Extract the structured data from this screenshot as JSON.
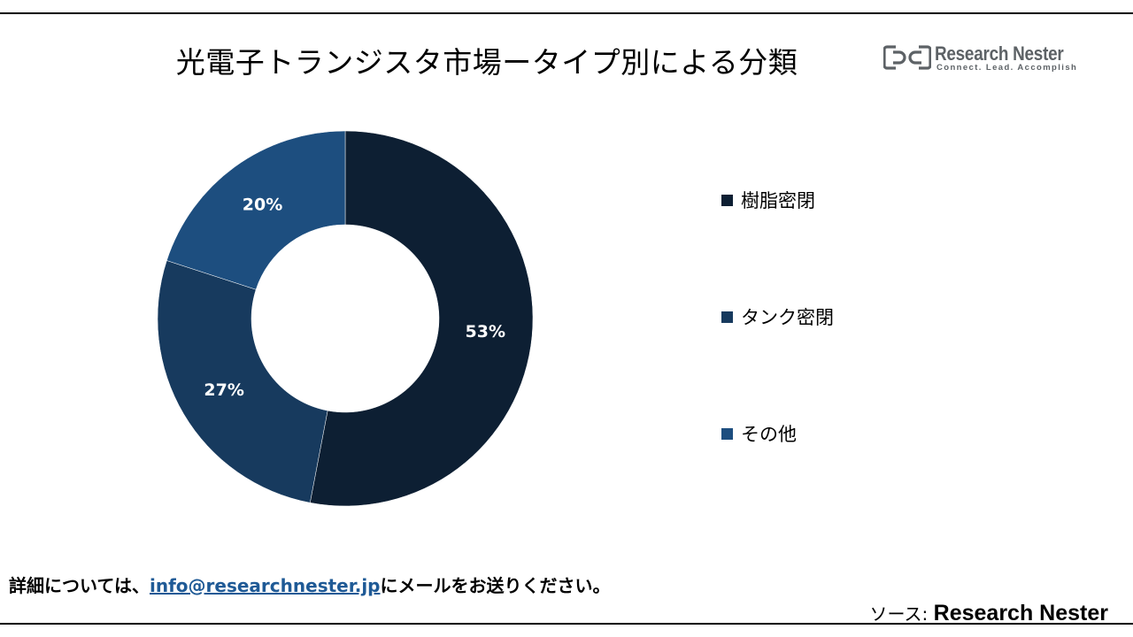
{
  "header": {
    "title": "光電子トランジスタ市場ータイプ別による分類"
  },
  "logo": {
    "name": "Research Nester",
    "tagline": "Connect. Lead. Accomplish",
    "color": "#5d6266"
  },
  "chart_data": {
    "type": "pie",
    "hole": 0.5,
    "start_angle_deg": 0,
    "direction": "clockwise",
    "legend_position": "right",
    "categories": [
      "樹脂密閉",
      "タンク密閉",
      "その他"
    ],
    "values": [
      53,
      27,
      20
    ],
    "labels": [
      "53%",
      "27%",
      "20%"
    ],
    "colors": [
      "#0d1f33",
      "#173a5e",
      "#1d4e7f"
    ]
  },
  "footer": {
    "note_prefix": "詳細については、",
    "email": "info@researchnester.jp",
    "note_suffix": "にメールをお送りください。",
    "source_prefix": "ソース: ",
    "source_name": "Research Nester"
  }
}
